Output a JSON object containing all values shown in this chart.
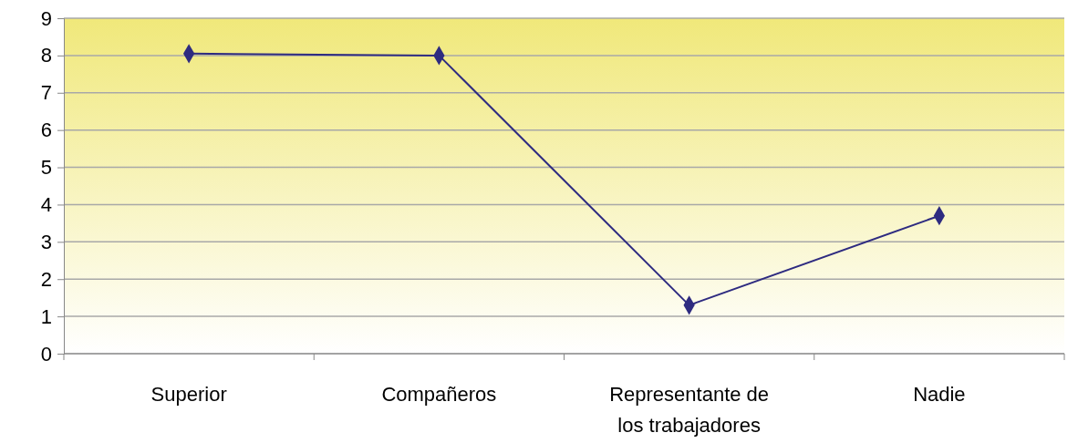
{
  "chart_data": {
    "type": "line",
    "categories": [
      "Superior",
      "Compañeros",
      "Representante de los trabajadores",
      "Nadie"
    ],
    "series": [
      {
        "color": "#2e2b80",
        "values": [
          8.05,
          8.0,
          1.3,
          3.7
        ]
      }
    ],
    "ylim": [
      0,
      9
    ],
    "yticks": [
      0,
      1,
      2,
      3,
      4,
      5,
      6,
      7,
      8,
      9
    ],
    "grid": "y",
    "marker": "diamond",
    "line_style": "solid"
  }
}
